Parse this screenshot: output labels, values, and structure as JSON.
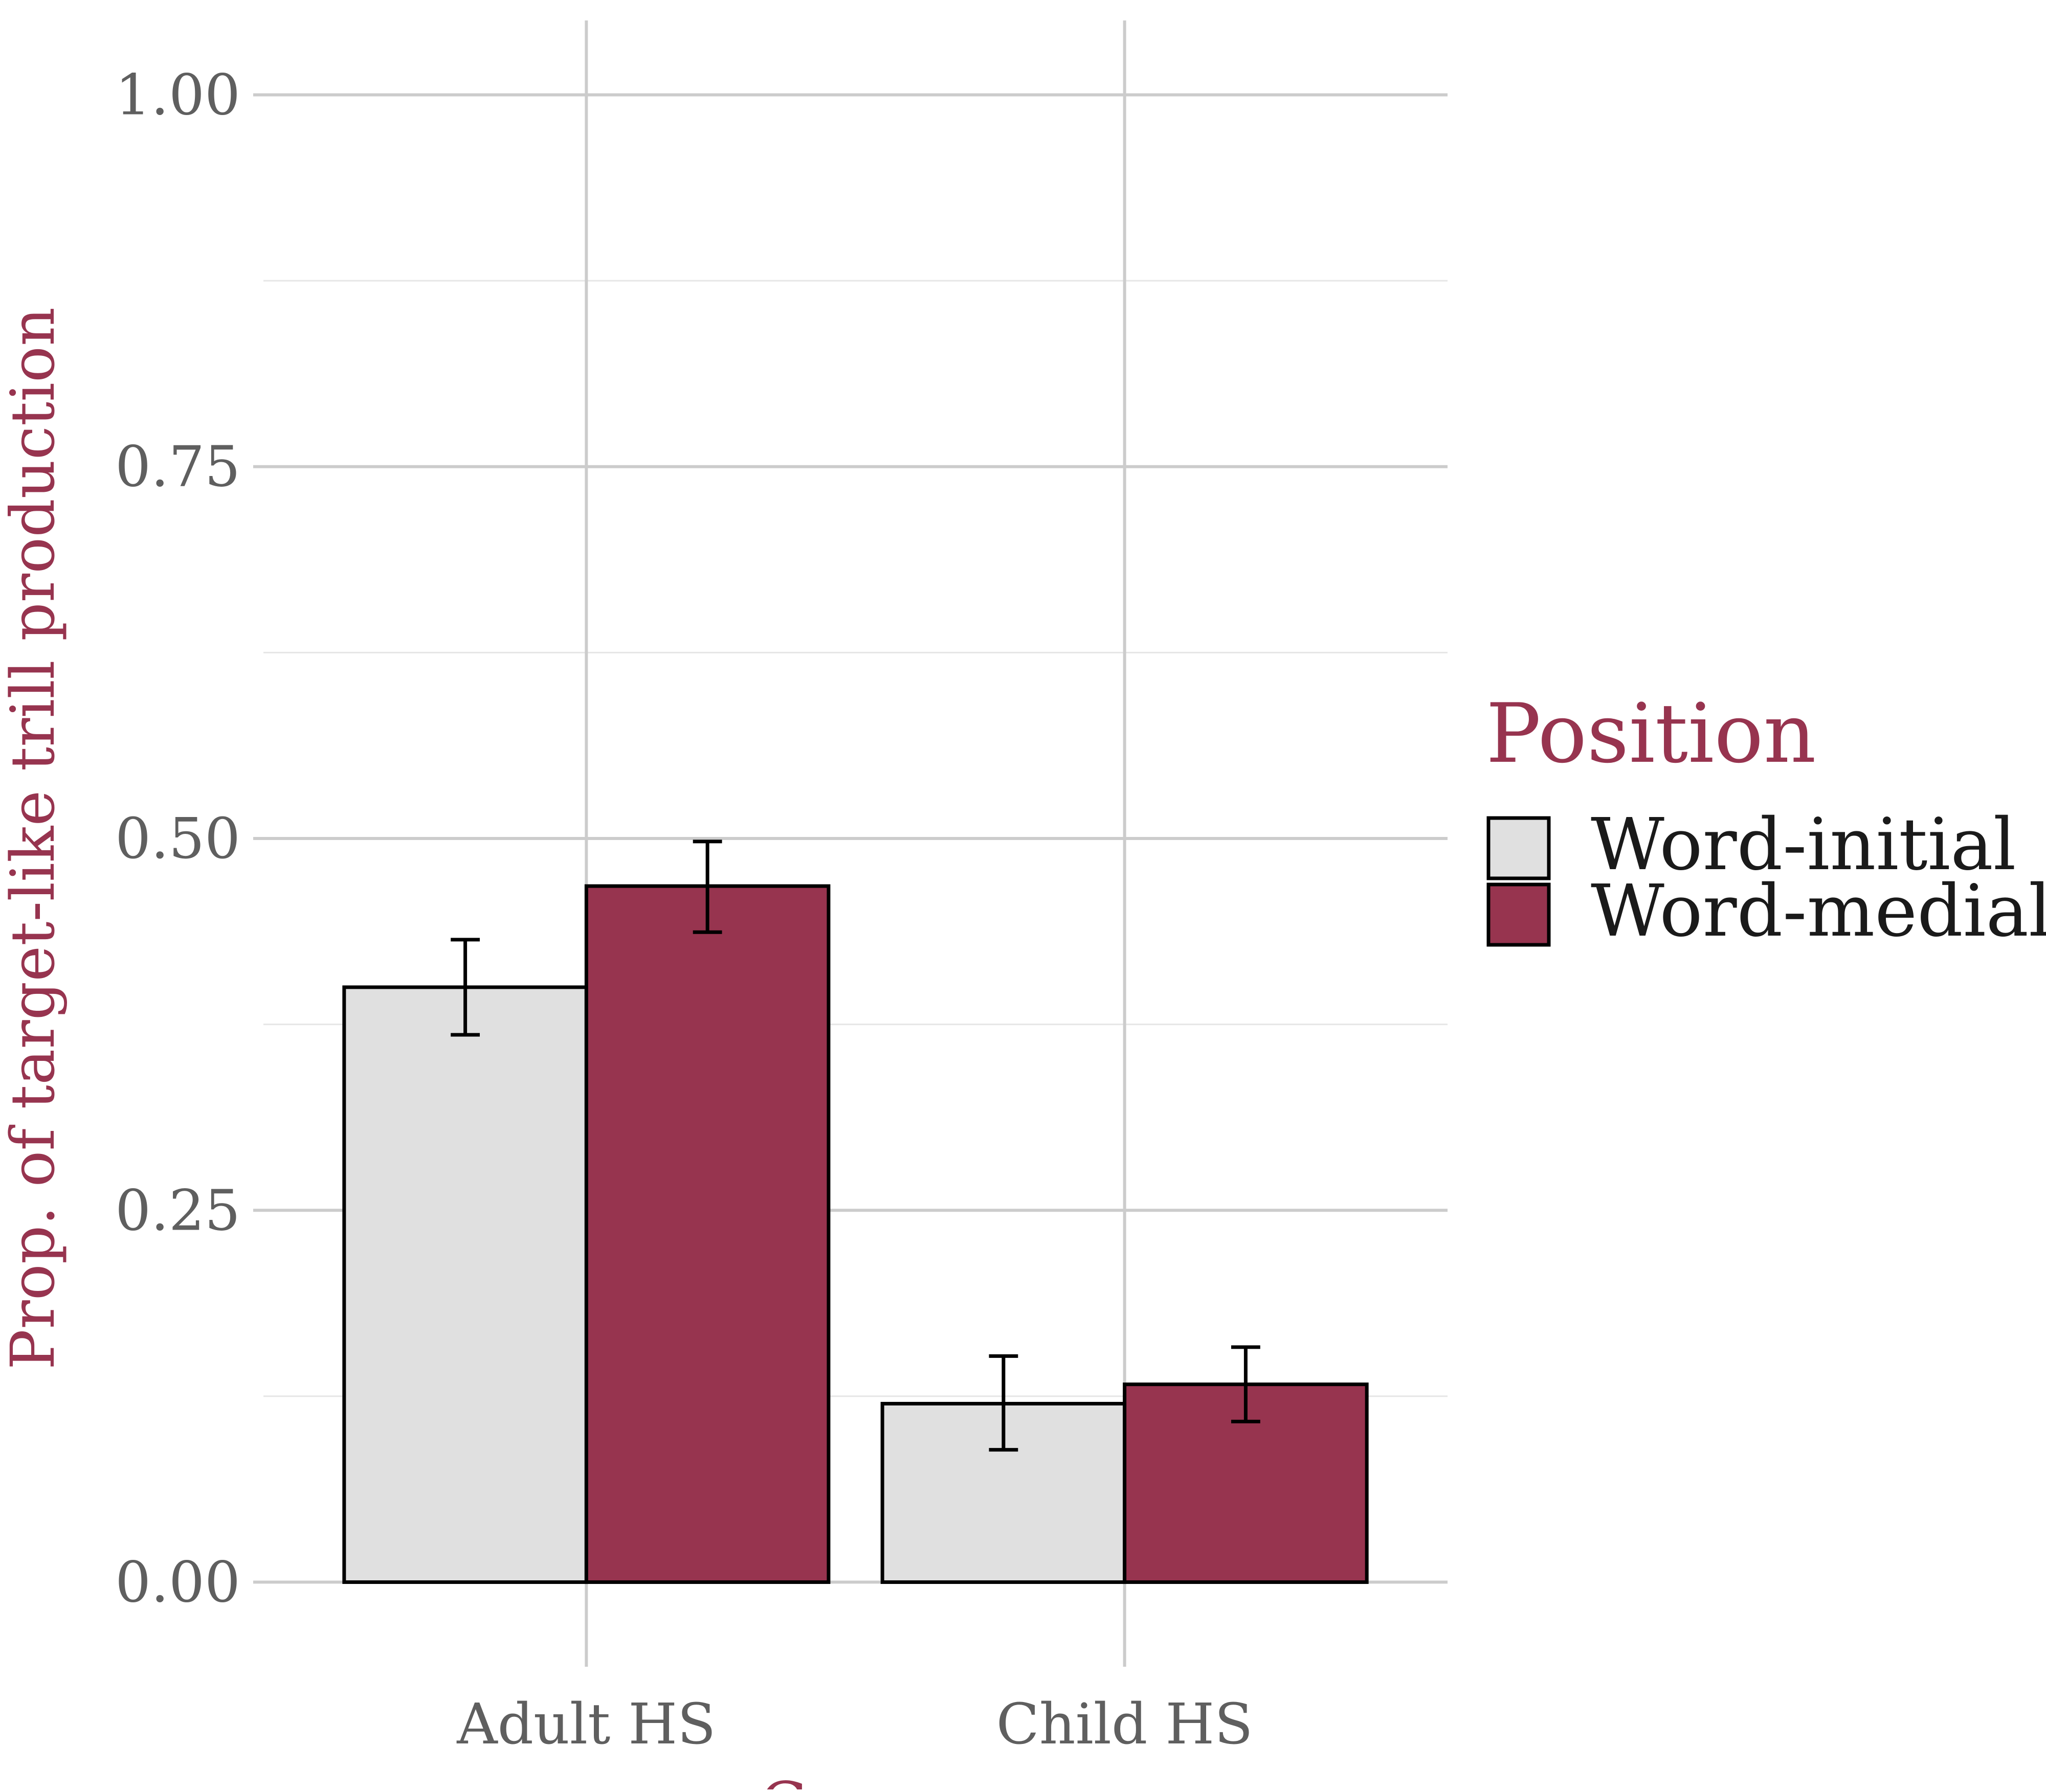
{
  "chart_data": {
    "type": "bar",
    "categories": [
      "Adult HS",
      "Child HS"
    ],
    "series": [
      {
        "name": "Word-initial",
        "values": [
          0.4,
          0.12
        ],
        "error_low": [
          0.368,
          0.089
        ],
        "error_high": [
          0.432,
          0.152
        ],
        "color": "#e0e0e0"
      },
      {
        "name": "Word-medial",
        "values": [
          0.468,
          0.133
        ],
        "error_low": [
          0.437,
          0.108
        ],
        "error_high": [
          0.498,
          0.158
        ],
        "color": "#97344f"
      }
    ],
    "xlabel": "Group",
    "ylabel": "Prop. of target-like trill production",
    "ylim": [
      -0.05,
      1.05
    ],
    "yticks": [
      0,
      0.25,
      0.5,
      0.75,
      1
    ],
    "ytick_labels": [
      "0.00",
      "0.25",
      "0.50",
      "0.75",
      "1.00"
    ],
    "legend": {
      "title": "Position",
      "position": "right",
      "items": [
        "Word-initial",
        "Word-medial"
      ]
    },
    "grid": true,
    "colors": {
      "axis_title": "#97344f",
      "tick_label": "#5f5f5f",
      "grid_major": "#cccccc",
      "grid_minor": "#e6e6e6",
      "bar_outline": "#000000"
    }
  }
}
